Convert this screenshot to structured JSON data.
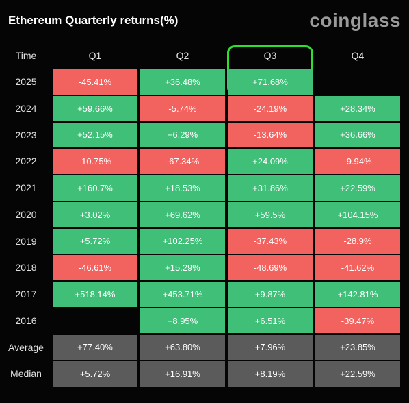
{
  "header": {
    "title": "Ethereum Quarterly returns(%)",
    "brand": "coinglass"
  },
  "colors": {
    "positive": "#3fbf78",
    "negative": "#f2625e",
    "summary": "#5b5b5b",
    "highlight": "#2ee02e"
  },
  "highlight_column": 3,
  "table": {
    "columns": [
      "Time",
      "Q1",
      "Q2",
      "Q3",
      "Q4"
    ],
    "rows": [
      [
        "2025",
        "-45.41%",
        "+36.48%",
        "+71.68%",
        null
      ],
      [
        "2024",
        "+59.66%",
        "-5.74%",
        "-24.19%",
        "+28.34%"
      ],
      [
        "2023",
        "+52.15%",
        "+6.29%",
        "-13.64%",
        "+36.66%"
      ],
      [
        "2022",
        "-10.75%",
        "-67.34%",
        "+24.09%",
        "-9.94%"
      ],
      [
        "2021",
        "+160.7%",
        "+18.53%",
        "+31.86%",
        "+22.59%"
      ],
      [
        "2020",
        "+3.02%",
        "+69.62%",
        "+59.5%",
        "+104.15%"
      ],
      [
        "2019",
        "+5.72%",
        "+102.25%",
        "-37.43%",
        "-28.9%"
      ],
      [
        "2018",
        "-46.61%",
        "+15.29%",
        "-48.69%",
        "-41.62%"
      ],
      [
        "2017",
        "+518.14%",
        "+453.71%",
        "+9.87%",
        "+142.81%"
      ],
      [
        "2016",
        null,
        "+8.95%",
        "+6.51%",
        "-39.47%"
      ]
    ],
    "summary_rows": [
      [
        "Average",
        "+77.40%",
        "+63.80%",
        "+7.96%",
        "+23.85%"
      ],
      [
        "Median",
        "+5.72%",
        "+16.91%",
        "+8.19%",
        "+22.59%"
      ]
    ]
  }
}
